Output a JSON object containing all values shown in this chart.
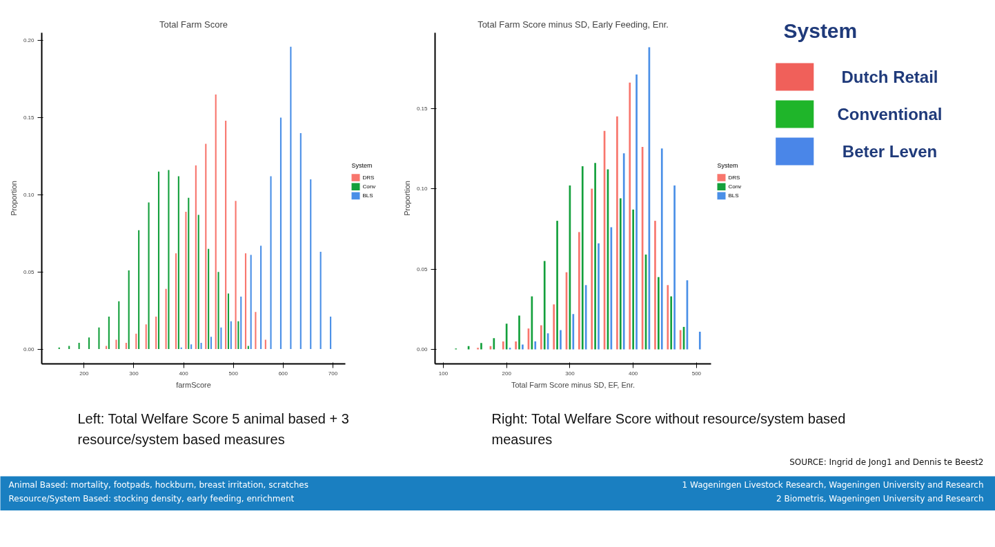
{
  "chart_data": [
    {
      "type": "bar",
      "title": "Total Farm Score",
      "xlabel": "farmScore",
      "ylabel": "Proportion",
      "legend_title": "System",
      "legend": "right",
      "grid": false,
      "x": [
        150,
        170,
        190,
        210,
        230,
        250,
        270,
        290,
        310,
        330,
        350,
        370,
        390,
        410,
        430,
        450,
        470,
        490,
        510,
        530,
        550,
        570,
        590,
        610,
        630,
        650,
        670,
        690
      ],
      "xlim": [
        115,
        725
      ],
      "xticks": [
        200,
        300,
        400,
        500,
        600,
        700
      ],
      "ylim": [
        -0.0096,
        0.205
      ],
      "yticks": [
        {
          "value": 0,
          "label": "0.00"
        },
        {
          "value": 0.05,
          "label": "0.05"
        },
        {
          "value": 0.1,
          "label": "0.10"
        },
        {
          "value": 0.15,
          "label": "0.15"
        },
        {
          "value": 0.2,
          "label": "0.20"
        }
      ],
      "series": [
        {
          "name": "DRS",
          "color": "#f8766d",
          "values": [
            0,
            0,
            0,
            0,
            0,
            0.002,
            0.006,
            0.004,
            0.01,
            0.016,
            0.021,
            0.039,
            0.062,
            0.089,
            0.119,
            0.133,
            0.165,
            0.148,
            0.096,
            0.062,
            0.024,
            0.006,
            0,
            0,
            0,
            0,
            0,
            0
          ]
        },
        {
          "name": "Conv",
          "color": "#14a03c",
          "values": [
            0.001,
            0.002,
            0.004,
            0.0075,
            0.014,
            0.021,
            0.031,
            0.051,
            0.077,
            0.095,
            0.115,
            0.116,
            0.112,
            0.098,
            0.087,
            0.065,
            0.05,
            0.036,
            0.018,
            0.002,
            0,
            0,
            0,
            0,
            0,
            0,
            0,
            0
          ]
        },
        {
          "name": "BLS",
          "color": "#4a8fe7",
          "values": [
            0,
            0,
            0,
            0,
            0,
            0,
            0,
            0,
            0,
            0,
            0,
            0,
            0.001,
            0.003,
            0.004,
            0.008,
            0.014,
            0.018,
            0.034,
            0.061,
            0.067,
            0.112,
            0.15,
            0.196,
            0.14,
            0.11,
            0.063,
            0.021
          ]
        }
      ],
      "annotations": [
        "Left: Total Welfare Score 5 animal based + 3 resource/system based measures",
        "Animal Based: mortality, footpads, hockburn, breast irritation, scratches",
        "Resource/System Based: stocking density, early feeding, enrichment"
      ]
    },
    {
      "type": "bar",
      "title": "Total Farm Score minus SD, Early Feeding, Enr.",
      "xlabel": "Total Farm Score minus SD, EF, Enr.",
      "ylabel": "Proportion",
      "legend_title": "System",
      "legend": "right",
      "grid": false,
      "x": [
        120,
        140,
        160,
        180,
        200,
        220,
        240,
        260,
        280,
        300,
        320,
        340,
        360,
        380,
        400,
        420,
        440,
        460,
        480,
        500
      ],
      "xlim": [
        87,
        523
      ],
      "xticks": [
        100,
        200,
        300,
        400,
        500
      ],
      "ylim": [
        -0.009,
        0.197
      ],
      "yticks": [
        {
          "value": 0,
          "label": "0.00"
        },
        {
          "value": 0.05,
          "label": "0.05"
        },
        {
          "value": 0.1,
          "label": "0.10"
        },
        {
          "value": 0.15,
          "label": "0.15"
        }
      ],
      "series": [
        {
          "name": "DRS",
          "color": "#f8766d",
          "values": [
            0,
            0,
            0.001,
            0.002,
            0.005,
            0.005,
            0.013,
            0.015,
            0.028,
            0.048,
            0.073,
            0.1,
            0.136,
            0.145,
            0.166,
            0.126,
            0.08,
            0.04,
            0.012,
            0
          ]
        },
        {
          "name": "Conv",
          "color": "#14a03c",
          "values": [
            0.0005,
            0.002,
            0.004,
            0.007,
            0.016,
            0.021,
            0.033,
            0.055,
            0.08,
            0.102,
            0.114,
            0.116,
            0.112,
            0.094,
            0.087,
            0.059,
            0.045,
            0.033,
            0.014,
            0
          ]
        },
        {
          "name": "BLS",
          "color": "#4a8fe7",
          "values": [
            0,
            0,
            0,
            0,
            0.001,
            0.003,
            0.005,
            0.01,
            0.012,
            0.022,
            0.04,
            0.066,
            0.076,
            0.122,
            0.171,
            0.188,
            0.125,
            0.102,
            0.043,
            0.011
          ]
        }
      ],
      "annotations": [
        "Right: Total Welfare Score without resource/system based measures",
        "SOURCE: Ingrid de Jong1 and Dennis te Beest2",
        "1 Wageningen Livestock Research, Wageningen University and Research",
        "2 Biometris, Wageningen University and Research"
      ]
    },
    {
      "type": "other",
      "title": "System",
      "categories": [
        "Dutch Retail",
        "Conventional",
        "Beter Leven"
      ],
      "colors": [
        "#f0605a",
        "#1fb52a",
        "#4a86e8"
      ]
    }
  ]
}
